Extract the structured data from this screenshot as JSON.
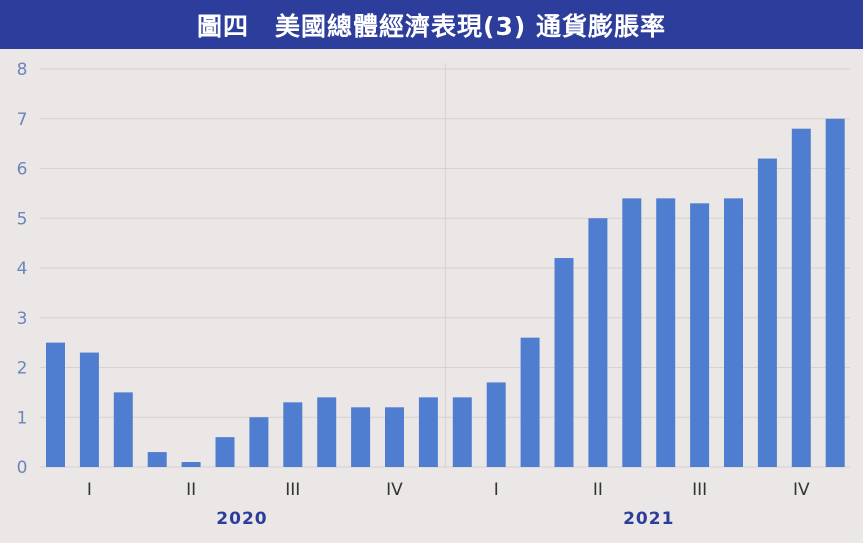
{
  "title": "圖四　美國總體經濟表現(3) 通貨膨脹率",
  "colors": {
    "title_bg": "#2d3d9c",
    "bar": "#4f7ed0",
    "grid": "#d6d2d2",
    "year_label": "#2d3d9c"
  },
  "chart_data": {
    "type": "bar",
    "title": "圖四　美國總體經濟表現(3) 通貨膨脹率",
    "xlabel": "",
    "ylabel": "",
    "ylim": [
      0,
      8
    ],
    "yticks": [
      0,
      1,
      2,
      3,
      4,
      5,
      6,
      7,
      8
    ],
    "grid": "horizontal",
    "legend": "none",
    "categories": [
      "2020-01",
      "2020-02",
      "2020-03",
      "2020-04",
      "2020-05",
      "2020-06",
      "2020-07",
      "2020-08",
      "2020-09",
      "2020-10",
      "2020-11",
      "2020-12",
      "2021-01",
      "2021-02",
      "2021-03",
      "2021-04",
      "2021-05",
      "2021-06",
      "2021-07",
      "2021-08",
      "2021-09",
      "2021-10",
      "2021-11",
      "2021-12"
    ],
    "values": [
      2.5,
      2.3,
      1.5,
      0.3,
      0.1,
      0.6,
      1.0,
      1.3,
      1.4,
      1.2,
      1.2,
      1.4,
      1.4,
      1.7,
      2.6,
      4.2,
      5.0,
      5.4,
      5.4,
      5.3,
      5.4,
      6.2,
      6.8,
      7.0
    ],
    "quarter_labels": [
      "I",
      "II",
      "III",
      "IV",
      "I",
      "II",
      "III",
      "IV"
    ],
    "year_labels": [
      "2020",
      "2021"
    ]
  }
}
